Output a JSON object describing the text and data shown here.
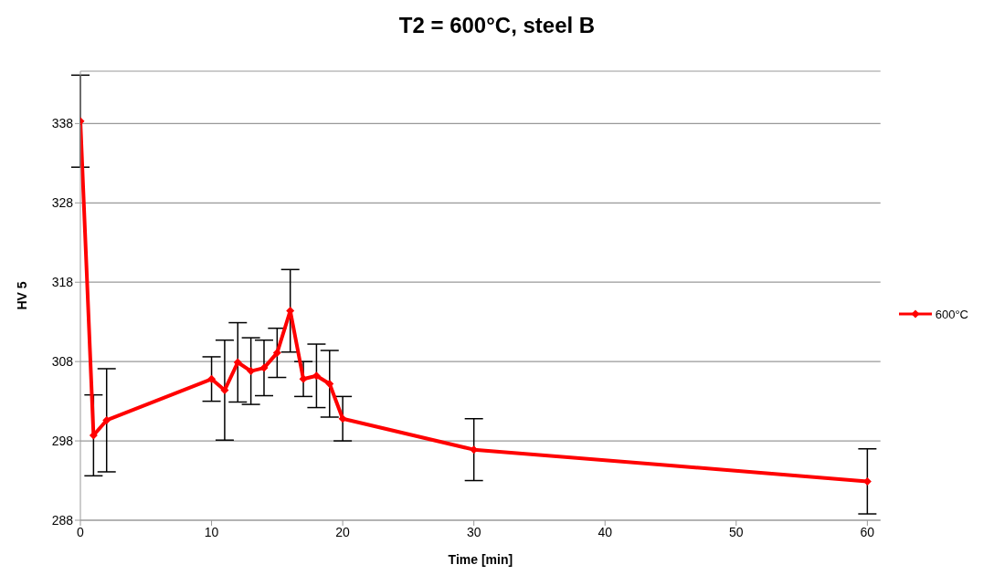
{
  "chart_data": {
    "type": "line",
    "title": "T2 = 600°C, steel B",
    "xlabel": "Time [min]",
    "ylabel": "HV 5",
    "x": [
      0,
      1,
      2,
      10,
      11,
      12,
      13,
      14,
      15,
      16,
      17,
      18,
      19,
      20,
      30,
      60
    ],
    "series": [
      {
        "name": "600°C",
        "color": "#ff0000",
        "values": [
          338.3,
          298.7,
          300.6,
          305.8,
          304.4,
          307.9,
          306.8,
          307.2,
          309.1,
          314.4,
          305.8,
          306.2,
          305.2,
          300.8,
          296.9,
          292.9
        ],
        "errors": [
          5.8,
          5.1,
          6.5,
          2.8,
          6.3,
          5,
          4.2,
          3.5,
          3.1,
          5.2,
          2.2,
          4,
          4.2,
          2.8,
          3.9,
          4.1
        ]
      }
    ],
    "xlim": [
      0,
      61
    ],
    "xticks": [
      0,
      10,
      20,
      30,
      40,
      50,
      60
    ],
    "ylim": [
      288,
      344.6
    ],
    "yticks": [
      288,
      298,
      308,
      318,
      328,
      338
    ],
    "grid": "y",
    "legend": "right",
    "marker": "diamond",
    "line_style": "solid"
  }
}
